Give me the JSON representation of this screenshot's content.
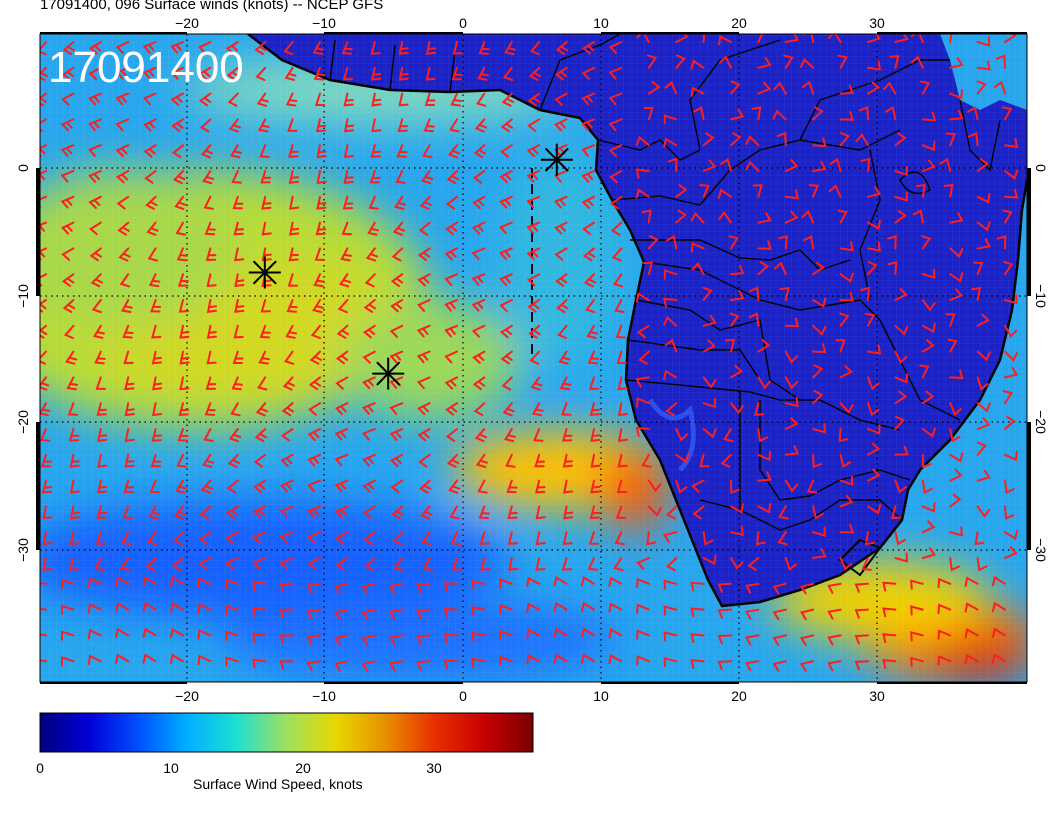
{
  "title": "17091400, 096 Surface winds (knots) -- NCEP GFS",
  "stamp": "17091400",
  "axes": {
    "x_ticks": [
      "−20",
      "−10",
      "0",
      "10",
      "20",
      "30"
    ],
    "y_ticks": [
      "0",
      "−10",
      "−20",
      "−30"
    ]
  },
  "colorbar": {
    "label": "Surface Wind Speed, knots",
    "ticks": [
      "0",
      "10",
      "20",
      "30"
    ],
    "range": [
      0,
      36
    ],
    "colors": [
      "#00007f",
      "#0000d8",
      "#0050ff",
      "#00b0ff",
      "#20e0d0",
      "#9ee060",
      "#e8d800",
      "#e89000",
      "#e83000",
      "#c80000",
      "#7a0000"
    ]
  },
  "map": {
    "lon_range": [
      -31,
      41
    ],
    "lat_range": [
      -40,
      10
    ],
    "ocean_color": "#2aa0f0",
    "land_color": "#1a24c0",
    "barb_color": "#ff1e1e",
    "markers_lonlat": [
      [
        -14.6,
        -8.4
      ],
      [
        -5.6,
        -16.2
      ],
      [
        6.7,
        0.3
      ]
    ]
  }
}
